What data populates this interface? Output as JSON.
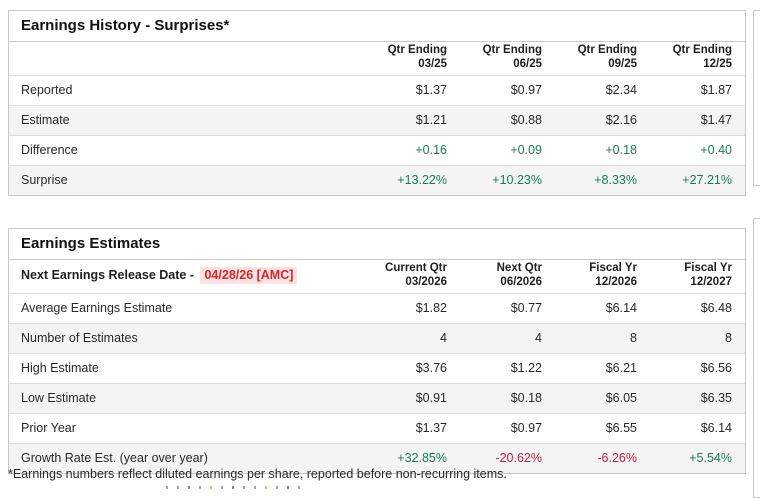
{
  "colors": {
    "positive": "#1a7d54",
    "negative": "#bb1f42",
    "alert_text": "#d82427",
    "alert_bg": "#fbe3e3"
  },
  "page": {
    "footnote": "*Earnings numbers reflect diluted earnings per share, reported before non-recurring items."
  },
  "history": {
    "title": "Earnings History - Surprises*",
    "columns": [
      {
        "top": "Qtr Ending",
        "sub": "03/25"
      },
      {
        "top": "Qtr Ending",
        "sub": "06/25"
      },
      {
        "top": "Qtr Ending",
        "sub": "09/25"
      },
      {
        "top": "Qtr Ending",
        "sub": "12/25"
      }
    ],
    "rows": [
      {
        "label": "Reported",
        "values": [
          "$1.37",
          "$0.97",
          "$2.34",
          "$1.87"
        ]
      },
      {
        "label": "Estimate",
        "values": [
          "$1.21",
          "$0.88",
          "$2.16",
          "$1.47"
        ]
      },
      {
        "label": "Difference",
        "values": [
          "+0.16",
          "+0.09",
          "+0.18",
          "+0.40"
        ],
        "value_tones": [
          "positive",
          "positive",
          "positive",
          "positive"
        ]
      },
      {
        "label": "Surprise",
        "values": [
          "+13.22%",
          "+10.23%",
          "+8.33%",
          "+27.21%"
        ],
        "value_tones": [
          "positive",
          "positive",
          "positive",
          "positive"
        ]
      }
    ]
  },
  "estimates": {
    "title": "Earnings Estimates",
    "release_label": "Next Earnings Release Date -",
    "release_date": "04/28/26 [AMC]",
    "columns": [
      {
        "top": "Current Qtr",
        "sub": "03/2026"
      },
      {
        "top": "Next Qtr",
        "sub": "06/2026"
      },
      {
        "top": "Fiscal Yr",
        "sub": "12/2026"
      },
      {
        "top": "Fiscal Yr",
        "sub": "12/2027"
      }
    ],
    "rows": [
      {
        "label": "Average Earnings Estimate",
        "values": [
          "$1.82",
          "$0.77",
          "$6.14",
          "$6.48"
        ]
      },
      {
        "label": "Number of Estimates",
        "values": [
          "4",
          "4",
          "8",
          "8"
        ]
      },
      {
        "label": "High Estimate",
        "values": [
          "$3.76",
          "$1.22",
          "$6.21",
          "$6.56"
        ]
      },
      {
        "label": "Low Estimate",
        "values": [
          "$0.91",
          "$0.18",
          "$6.05",
          "$6.35"
        ]
      },
      {
        "label": "Prior Year",
        "values": [
          "$1.37",
          "$0.97",
          "$6.55",
          "$6.14"
        ]
      },
      {
        "label": "Growth Rate Est. (year over year)",
        "values": [
          "+32.85%",
          "-20.62%",
          "-6.26%",
          "+5.54%"
        ],
        "value_tones": [
          "positive",
          "negative",
          "negative",
          "positive"
        ]
      }
    ]
  }
}
